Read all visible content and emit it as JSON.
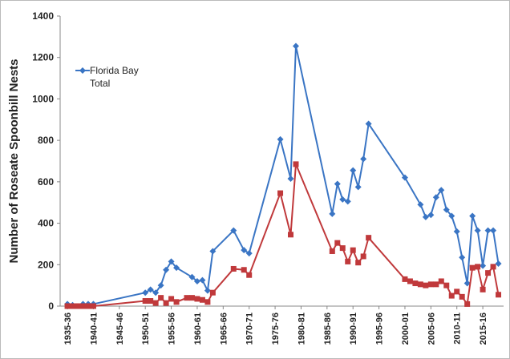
{
  "chart_data": {
    "type": "line",
    "ylabel": "Number of Roseate Spoonbill Nests",
    "xlim": [
      1933.6,
      2019
    ],
    "ylim": [
      0,
      1400
    ],
    "yticks": [
      0,
      200,
      400,
      600,
      800,
      1000,
      1200,
      1400
    ],
    "xticks": [
      {
        "value": 1935,
        "label": "1935-36"
      },
      {
        "value": 1940,
        "label": "1940-41"
      },
      {
        "value": 1945,
        "label": "1945-46"
      },
      {
        "value": 1950,
        "label": "1950-51"
      },
      {
        "value": 1955,
        "label": "1955-56"
      },
      {
        "value": 1960,
        "label": "1960-61"
      },
      {
        "value": 1965,
        "label": "1965-66"
      },
      {
        "value": 1970,
        "label": "1970-71"
      },
      {
        "value": 1975,
        "label": "1975-76"
      },
      {
        "value": 1980,
        "label": "1980-81"
      },
      {
        "value": 1985,
        "label": "1985-86"
      },
      {
        "value": 1990,
        "label": "1990-91"
      },
      {
        "value": 1995,
        "label": "1995-96"
      },
      {
        "value": 2000,
        "label": "2000-01"
      },
      {
        "value": 2005,
        "label": "2005-06"
      },
      {
        "value": 2010,
        "label": "2010-11"
      },
      {
        "value": 2015,
        "label": "2015-16"
      }
    ],
    "series": [
      {
        "name": "Florida Bay Total",
        "color": "#3a75c4",
        "marker": "diamond",
        "x": [
          1935,
          1936,
          1938,
          1939,
          1940,
          1950,
          1951,
          1952,
          1953,
          1954,
          1955,
          1956,
          1959,
          1960,
          1961,
          1962,
          1963,
          1967,
          1969,
          1970,
          1976,
          1978,
          1979,
          1986,
          1987,
          1988,
          1989,
          1990,
          1991,
          1992,
          1993,
          2000,
          2003,
          2004,
          2005,
          2006,
          2007,
          2008,
          2009,
          2010,
          2011,
          2012,
          2013,
          2014,
          2015,
          2016,
          2017,
          2018
        ],
        "values": [
          10,
          5,
          10,
          10,
          10,
          65,
          80,
          65,
          100,
          175,
          215,
          185,
          140,
          120,
          125,
          75,
          265,
          365,
          270,
          255,
          805,
          615,
          1255,
          445,
          590,
          515,
          505,
          655,
          575,
          710,
          880,
          620,
          490,
          430,
          440,
          525,
          560,
          465,
          435,
          360,
          235,
          110,
          435,
          365,
          195,
          365,
          365,
          205
        ]
      },
      {
        "color": "#c0393b",
        "marker": "square",
        "x": [
          1935,
          1936,
          1937,
          1938,
          1939,
          1940,
          1950,
          1951,
          1952,
          1953,
          1954,
          1955,
          1956,
          1958,
          1959,
          1960,
          1961,
          1962,
          1963,
          1967,
          1969,
          1970,
          1976,
          1978,
          1979,
          1986,
          1987,
          1988,
          1989,
          1990,
          1991,
          1992,
          1993,
          2000,
          2001,
          2002,
          2003,
          2004,
          2005,
          2006,
          2007,
          2008,
          2009,
          2010,
          2011,
          2012,
          2013,
          2014,
          2015,
          2016,
          2017,
          2018
        ],
        "values": [
          0,
          0,
          0,
          0,
          0,
          0,
          25,
          25,
          15,
          40,
          15,
          35,
          20,
          40,
          40,
          35,
          30,
          20,
          65,
          180,
          175,
          150,
          545,
          345,
          685,
          265,
          305,
          280,
          215,
          270,
          210,
          240,
          330,
          130,
          120,
          110,
          105,
          100,
          105,
          105,
          120,
          100,
          50,
          70,
          45,
          10,
          185,
          190,
          80,
          160,
          190,
          55
        ]
      }
    ]
  }
}
